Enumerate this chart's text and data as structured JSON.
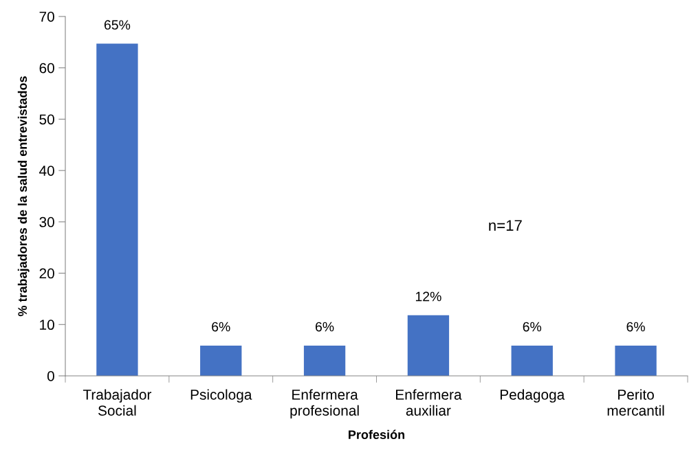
{
  "chart_data": {
    "type": "bar",
    "categories": [
      "Trabajador\nSocial",
      "Psicologa",
      "Enfermera\nprofesional",
      "Enfermera\nauxiliar",
      "Pedagoga",
      "Perito\nmercantil"
    ],
    "values": [
      64.7,
      5.9,
      5.9,
      11.8,
      5.9,
      5.9
    ],
    "value_labels": [
      "65%",
      "6%",
      "6%",
      "12%",
      "6%",
      "6%"
    ],
    "color": "#4472c4",
    "xlabel": "Profesión",
    "ylabel": "% trabajadores de la salud entrevistados",
    "annotations": [
      "n=17"
    ],
    "ylim": [
      0,
      70
    ],
    "yticks": [
      0,
      10,
      20,
      30,
      40,
      50,
      60,
      70
    ],
    "grid": false,
    "legend": false
  }
}
